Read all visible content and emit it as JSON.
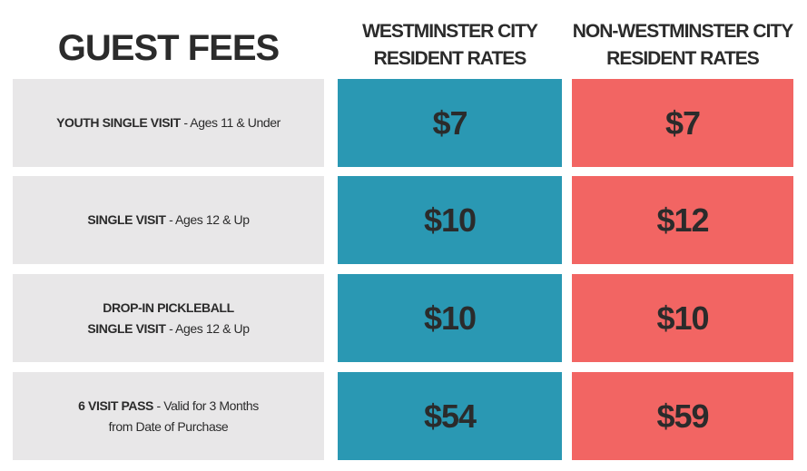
{
  "header": {
    "title": "GUEST FEES",
    "resident_col": [
      "WESTMINSTER CITY",
      "RESIDENT RATES"
    ],
    "non_resident_col": [
      "NON-WESTMINSTER CITY",
      "RESIDENT RATES"
    ]
  },
  "colors": {
    "resident": "#2a98b3",
    "non_resident": "#f26563",
    "label_bg": "#e8e7e8"
  },
  "rows": [
    {
      "bold": "YOUTH SINGLE VISIT",
      "detail": " - Ages 11 & Under",
      "bold_line1": "",
      "detail_line2": "",
      "resident": "$7",
      "non_resident": "$7"
    },
    {
      "bold": "SINGLE VISIT",
      "detail": " - Ages 12 & Up",
      "bold_line1": "",
      "detail_line2": "",
      "resident": "$10",
      "non_resident": "$12"
    },
    {
      "bold_line1": "DROP-IN PICKLEBALL",
      "bold": "SINGLE VISIT",
      "detail": " - Ages 12 & Up",
      "detail_line2": "",
      "resident": "$10",
      "non_resident": "$10"
    },
    {
      "bold_line1": "",
      "bold": "6 VISIT PASS",
      "detail": " - Valid for 3 Months",
      "detail_line2": "from Date of Purchase",
      "resident": "$54",
      "non_resident": "$59"
    }
  ]
}
